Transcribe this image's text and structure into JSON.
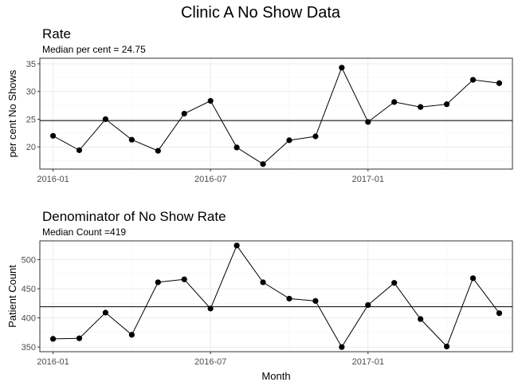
{
  "title": "Clinic A No Show Data",
  "chart_data": [
    {
      "type": "line",
      "title": "Rate",
      "subtitle": "Median per cent = 24.75",
      "ylabel": "per cent No Shows",
      "xlabel": "",
      "ylim": [
        16,
        36
      ],
      "yticks": [
        20,
        25,
        30,
        35
      ],
      "xticks": [
        "2016-01",
        "2016-07",
        "2017-01"
      ],
      "x": [
        "2016-01",
        "2016-02",
        "2016-03",
        "2016-04",
        "2016-05",
        "2016-06",
        "2016-07",
        "2016-08",
        "2016-09",
        "2016-10",
        "2016-11",
        "2016-12",
        "2017-01",
        "2017-02",
        "2017-03",
        "2017-04",
        "2017-05",
        "2017-06"
      ],
      "values": [
        22.0,
        19.4,
        25.0,
        21.3,
        19.3,
        26.0,
        28.3,
        19.9,
        16.9,
        21.2,
        21.9,
        34.3,
        24.5,
        28.1,
        27.2,
        27.7,
        32.1,
        31.5
      ],
      "median": 24.75,
      "grid": true
    },
    {
      "type": "line",
      "title": "Denominator of No Show Rate",
      "subtitle": "Median Count =419",
      "ylabel": "Patient Count",
      "xlabel": "Month",
      "ylim": [
        342,
        532
      ],
      "yticks": [
        350,
        400,
        450,
        500
      ],
      "xticks": [
        "2016-01",
        "2016-07",
        "2017-01"
      ],
      "x": [
        "2016-01",
        "2016-02",
        "2016-03",
        "2016-04",
        "2016-05",
        "2016-06",
        "2016-07",
        "2016-08",
        "2016-09",
        "2016-10",
        "2016-11",
        "2016-12",
        "2017-01",
        "2017-02",
        "2017-03",
        "2017-04",
        "2017-05",
        "2017-06"
      ],
      "values": [
        364,
        365,
        409,
        371,
        461,
        466,
        416,
        524,
        461,
        433,
        429,
        350,
        422,
        460,
        398,
        351,
        468,
        408
      ],
      "median": 419,
      "grid": true
    }
  ]
}
